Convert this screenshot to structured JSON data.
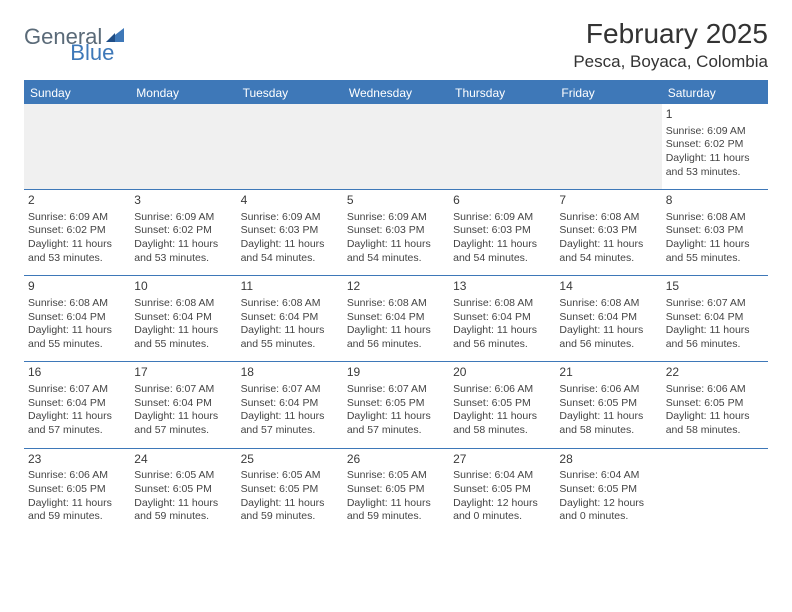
{
  "logo": {
    "general": "General",
    "blue": "Blue"
  },
  "title": "February 2025",
  "location": "Pesca, Boyaca, Colombia",
  "colors": {
    "header_bg": "#3e78b8",
    "header_text": "#ffffff",
    "text": "#333333",
    "rule": "#3e78b8",
    "empty_bg": "#f0f0f0"
  },
  "fonts": {
    "title_pt": 28,
    "location_pt": 17,
    "th_pt": 12,
    "cell_pt": 10.5
  },
  "weekdays": [
    "Sunday",
    "Monday",
    "Tuesday",
    "Wednesday",
    "Thursday",
    "Friday",
    "Saturday"
  ],
  "weeks": [
    [
      null,
      null,
      null,
      null,
      null,
      null,
      {
        "n": "1",
        "sr": "6:09 AM",
        "ss": "6:02 PM",
        "dh": "11",
        "dm": "53"
      }
    ],
    [
      {
        "n": "2",
        "sr": "6:09 AM",
        "ss": "6:02 PM",
        "dh": "11",
        "dm": "53"
      },
      {
        "n": "3",
        "sr": "6:09 AM",
        "ss": "6:02 PM",
        "dh": "11",
        "dm": "53"
      },
      {
        "n": "4",
        "sr": "6:09 AM",
        "ss": "6:03 PM",
        "dh": "11",
        "dm": "54"
      },
      {
        "n": "5",
        "sr": "6:09 AM",
        "ss": "6:03 PM",
        "dh": "11",
        "dm": "54"
      },
      {
        "n": "6",
        "sr": "6:09 AM",
        "ss": "6:03 PM",
        "dh": "11",
        "dm": "54"
      },
      {
        "n": "7",
        "sr": "6:08 AM",
        "ss": "6:03 PM",
        "dh": "11",
        "dm": "54"
      },
      {
        "n": "8",
        "sr": "6:08 AM",
        "ss": "6:03 PM",
        "dh": "11",
        "dm": "55"
      }
    ],
    [
      {
        "n": "9",
        "sr": "6:08 AM",
        "ss": "6:04 PM",
        "dh": "11",
        "dm": "55"
      },
      {
        "n": "10",
        "sr": "6:08 AM",
        "ss": "6:04 PM",
        "dh": "11",
        "dm": "55"
      },
      {
        "n": "11",
        "sr": "6:08 AM",
        "ss": "6:04 PM",
        "dh": "11",
        "dm": "55"
      },
      {
        "n": "12",
        "sr": "6:08 AM",
        "ss": "6:04 PM",
        "dh": "11",
        "dm": "56"
      },
      {
        "n": "13",
        "sr": "6:08 AM",
        "ss": "6:04 PM",
        "dh": "11",
        "dm": "56"
      },
      {
        "n": "14",
        "sr": "6:08 AM",
        "ss": "6:04 PM",
        "dh": "11",
        "dm": "56"
      },
      {
        "n": "15",
        "sr": "6:07 AM",
        "ss": "6:04 PM",
        "dh": "11",
        "dm": "56"
      }
    ],
    [
      {
        "n": "16",
        "sr": "6:07 AM",
        "ss": "6:04 PM",
        "dh": "11",
        "dm": "57"
      },
      {
        "n": "17",
        "sr": "6:07 AM",
        "ss": "6:04 PM",
        "dh": "11",
        "dm": "57"
      },
      {
        "n": "18",
        "sr": "6:07 AM",
        "ss": "6:04 PM",
        "dh": "11",
        "dm": "57"
      },
      {
        "n": "19",
        "sr": "6:07 AM",
        "ss": "6:05 PM",
        "dh": "11",
        "dm": "57"
      },
      {
        "n": "20",
        "sr": "6:06 AM",
        "ss": "6:05 PM",
        "dh": "11",
        "dm": "58"
      },
      {
        "n": "21",
        "sr": "6:06 AM",
        "ss": "6:05 PM",
        "dh": "11",
        "dm": "58"
      },
      {
        "n": "22",
        "sr": "6:06 AM",
        "ss": "6:05 PM",
        "dh": "11",
        "dm": "58"
      }
    ],
    [
      {
        "n": "23",
        "sr": "6:06 AM",
        "ss": "6:05 PM",
        "dh": "11",
        "dm": "59"
      },
      {
        "n": "24",
        "sr": "6:05 AM",
        "ss": "6:05 PM",
        "dh": "11",
        "dm": "59"
      },
      {
        "n": "25",
        "sr": "6:05 AM",
        "ss": "6:05 PM",
        "dh": "11",
        "dm": "59"
      },
      {
        "n": "26",
        "sr": "6:05 AM",
        "ss": "6:05 PM",
        "dh": "11",
        "dm": "59"
      },
      {
        "n": "27",
        "sr": "6:04 AM",
        "ss": "6:05 PM",
        "dh": "12",
        "dm": "0"
      },
      {
        "n": "28",
        "sr": "6:04 AM",
        "ss": "6:05 PM",
        "dh": "12",
        "dm": "0"
      },
      null
    ]
  ],
  "labels": {
    "sunrise": "Sunrise:",
    "sunset": "Sunset:",
    "daylight": "Daylight:",
    "hours_and": "hours and",
    "minutes": "minutes."
  }
}
